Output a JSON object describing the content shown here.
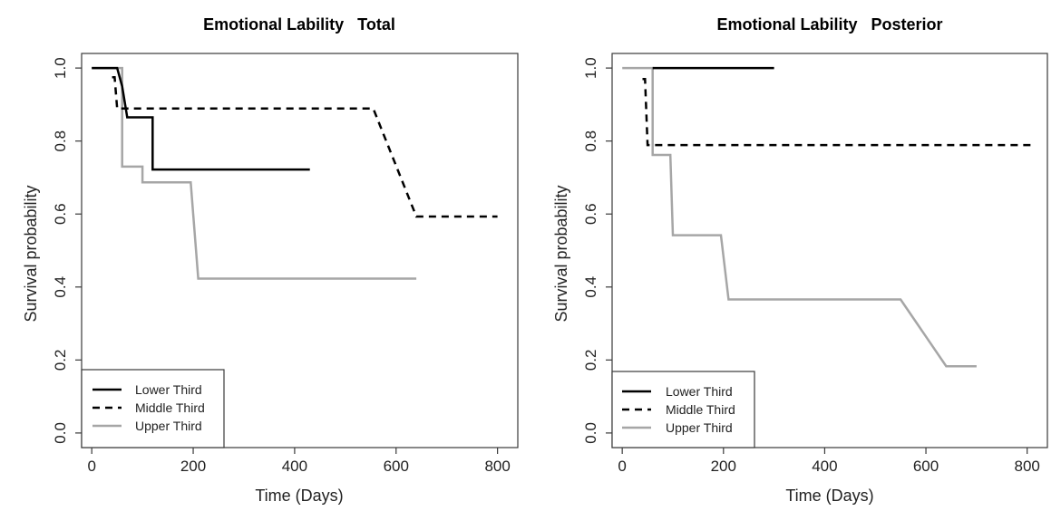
{
  "chart_data": [
    {
      "type": "line",
      "title": "Emotional Lability   Total",
      "xlabel": "Time (Days)",
      "ylabel": "Survival probability",
      "xlim": [
        -20,
        840
      ],
      "ylim": [
        -0.04,
        1.04
      ],
      "xticks": [
        "0",
        "200",
        "400",
        "600",
        "800"
      ],
      "yticks": [
        "0.0",
        "0.2",
        "0.4",
        "0.6",
        "0.8",
        "1.0"
      ],
      "legend_position": "bottom-left",
      "series": [
        {
          "name": "Lower Third",
          "style": "solid",
          "color": "#000000",
          "x": [
            0,
            50,
            60,
            70,
            120,
            120,
            430
          ],
          "y": [
            1.0,
            1.0,
            0.95,
            0.865,
            0.865,
            0.722,
            0.722
          ]
        },
        {
          "name": "Middle Third",
          "style": "dashed",
          "color": "#000000",
          "x": [
            40,
            45,
            50,
            555,
            640,
            800
          ],
          "y": [
            0.975,
            0.975,
            0.889,
            0.889,
            0.593,
            0.593
          ]
        },
        {
          "name": "Upper Third",
          "style": "solid",
          "color": "#a6a6a6",
          "x": [
            0,
            60,
            60,
            100,
            100,
            195,
            210,
            640
          ],
          "y": [
            1.0,
            1.0,
            0.73,
            0.73,
            0.687,
            0.687,
            0.423,
            0.423
          ]
        }
      ]
    },
    {
      "type": "line",
      "title": "Emotional Lability   Posterior",
      "xlabel": "Time (Days)",
      "ylabel": "Survival probability",
      "xlim": [
        -20,
        840
      ],
      "ylim": [
        -0.04,
        1.04
      ],
      "xticks": [
        "0",
        "200",
        "400",
        "600",
        "800"
      ],
      "yticks": [
        "0.0",
        "0.2",
        "0.4",
        "0.6",
        "0.8",
        "1.0"
      ],
      "legend_position": "bottom-left",
      "series": [
        {
          "name": "Lower Third",
          "style": "solid",
          "color": "#000000",
          "x": [
            60,
            300
          ],
          "y": [
            1.0,
            1.0
          ]
        },
        {
          "name": "Middle Third",
          "style": "dashed",
          "color": "#000000",
          "x": [
            40,
            45,
            50,
            810
          ],
          "y": [
            0.97,
            0.97,
            0.789,
            0.789
          ]
        },
        {
          "name": "Upper Third",
          "style": "solid",
          "color": "#a6a6a6",
          "x": [
            0,
            60,
            60,
            95,
            100,
            195,
            210,
            550,
            640,
            700
          ],
          "y": [
            1.0,
            1.0,
            0.762,
            0.762,
            0.542,
            0.542,
            0.366,
            0.366,
            0.183,
            0.183
          ]
        }
      ]
    }
  ]
}
